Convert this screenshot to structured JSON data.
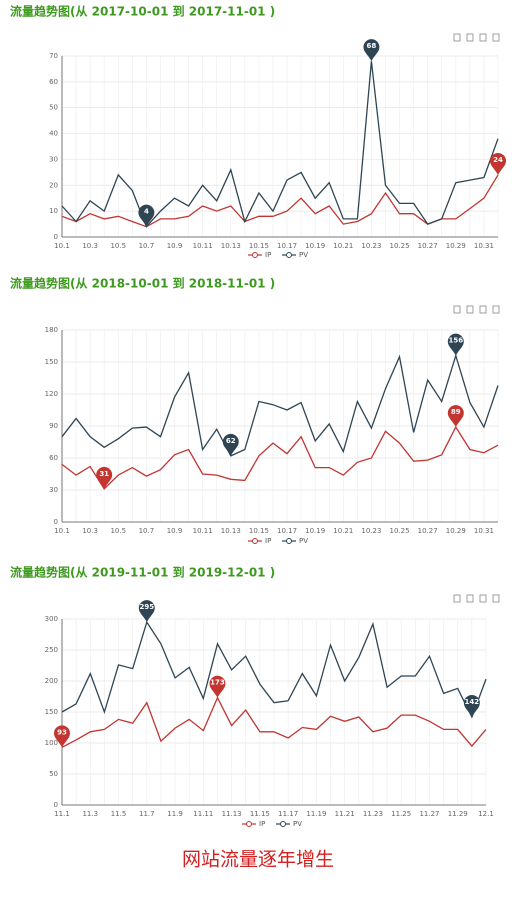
{
  "chart_data": [
    {
      "type": "line",
      "title": "流量趋势图(从 2017-10-01 到 2017-11-01 )",
      "categories": [
        "10.1",
        null,
        "10.3",
        null,
        "10.5",
        null,
        "10.7",
        null,
        "10.9",
        null,
        "10.11",
        null,
        "10.13",
        null,
        "10.15",
        null,
        "10.17",
        null,
        "10.19",
        null,
        "10.21",
        null,
        "10.23",
        null,
        "10.25",
        null,
        "10.27",
        null,
        "10.29",
        null,
        "10.31",
        null
      ],
      "series": [
        {
          "name": "IP",
          "color": "#c23531",
          "mark_points": [
            "max"
          ],
          "values": [
            8,
            6,
            9,
            7,
            8,
            6,
            4,
            7,
            7,
            8,
            12,
            10,
            12,
            6,
            8,
            8,
            10,
            15,
            9,
            12,
            5,
            6,
            9,
            17,
            9,
            9,
            5,
            7,
            7,
            11,
            15,
            24
          ]
        },
        {
          "name": "PV",
          "color": "#2f4554",
          "mark_points": [
            "max",
            "min"
          ],
          "values": [
            12,
            6,
            14,
            10,
            24,
            18,
            4,
            10,
            15,
            12,
            20,
            14,
            26,
            6,
            17,
            10,
            22,
            25,
            15,
            21,
            7,
            7,
            68,
            20,
            13,
            13,
            5,
            7,
            21,
            22,
            23,
            38
          ]
        }
      ],
      "ylim": [
        0,
        70
      ],
      "yticks": [
        0,
        10,
        20,
        30,
        40,
        50,
        60,
        70
      ],
      "grid": true,
      "legend": "bottom"
    },
    {
      "type": "line",
      "title": "流量趋势图(从 2018-10-01 到 2018-11-01 )",
      "categories": [
        "10.1",
        null,
        "10.3",
        null,
        "10.5",
        null,
        "10.7",
        null,
        "10.9",
        null,
        "10.11",
        null,
        "10.13",
        null,
        "10.15",
        null,
        "10.17",
        null,
        "10.19",
        null,
        "10.21",
        null,
        "10.23",
        null,
        "10.25",
        null,
        "10.27",
        null,
        "10.29",
        null,
        "10.31",
        null
      ],
      "series": [
        {
          "name": "IP",
          "color": "#c23531",
          "mark_points": [
            "max",
            "min"
          ],
          "values": [
            54,
            44,
            52,
            31,
            44,
            51,
            43,
            49,
            63,
            68,
            45,
            44,
            40,
            39,
            62,
            74,
            64,
            80,
            51,
            51,
            44,
            56,
            60,
            85,
            74,
            57,
            58,
            63,
            89,
            68,
            65,
            72
          ]
        },
        {
          "name": "PV",
          "color": "#2f4554",
          "mark_points": [
            "max",
            "min"
          ],
          "values": [
            80,
            97,
            80,
            70,
            78,
            88,
            89,
            80,
            117,
            140,
            68,
            87,
            62,
            68,
            113,
            110,
            105,
            112,
            76,
            92,
            66,
            113,
            88,
            125,
            155,
            84,
            133,
            113,
            156,
            112,
            89,
            128
          ]
        }
      ],
      "ylim": [
        0,
        180
      ],
      "yticks": [
        0,
        30,
        60,
        90,
        120,
        150,
        180
      ],
      "grid": true,
      "legend": "bottom"
    },
    {
      "type": "line",
      "title": "流量趋势图(从 2019-11-01 到 2019-12-01 )",
      "categories": [
        "11.1",
        null,
        "11.3",
        null,
        "11.5",
        null,
        "11.7",
        null,
        "11.9",
        null,
        "11.11",
        null,
        "11.13",
        null,
        "11.15",
        null,
        "11.17",
        null,
        "11.19",
        null,
        "11.21",
        null,
        "11.23",
        null,
        "11.25",
        null,
        "11.27",
        null,
        "11.29",
        null,
        "12.1"
      ],
      "series": [
        {
          "name": "IP",
          "color": "#c23531",
          "mark_points": [
            "max",
            "min"
          ],
          "values": [
            93,
            105,
            118,
            122,
            138,
            132,
            165,
            103,
            124,
            138,
            120,
            173,
            128,
            153,
            118,
            118,
            108,
            125,
            122,
            143,
            135,
            142,
            118,
            124,
            145,
            145,
            135,
            122,
            122,
            95,
            122
          ]
        },
        {
          "name": "PV",
          "color": "#2f4554",
          "mark_points": [
            "max",
            "min"
          ],
          "values": [
            150,
            163,
            212,
            150,
            226,
            220,
            295,
            260,
            205,
            222,
            172,
            260,
            218,
            240,
            195,
            165,
            168,
            212,
            176,
            258,
            200,
            238,
            292,
            190,
            208,
            208,
            240,
            180,
            188,
            142,
            203
          ]
        }
      ],
      "ylim": [
        0,
        300
      ],
      "yticks": [
        0,
        50,
        100,
        150,
        200,
        250,
        300
      ],
      "grid": true,
      "legend": "bottom"
    }
  ],
  "caption": "网站流量逐年增生"
}
